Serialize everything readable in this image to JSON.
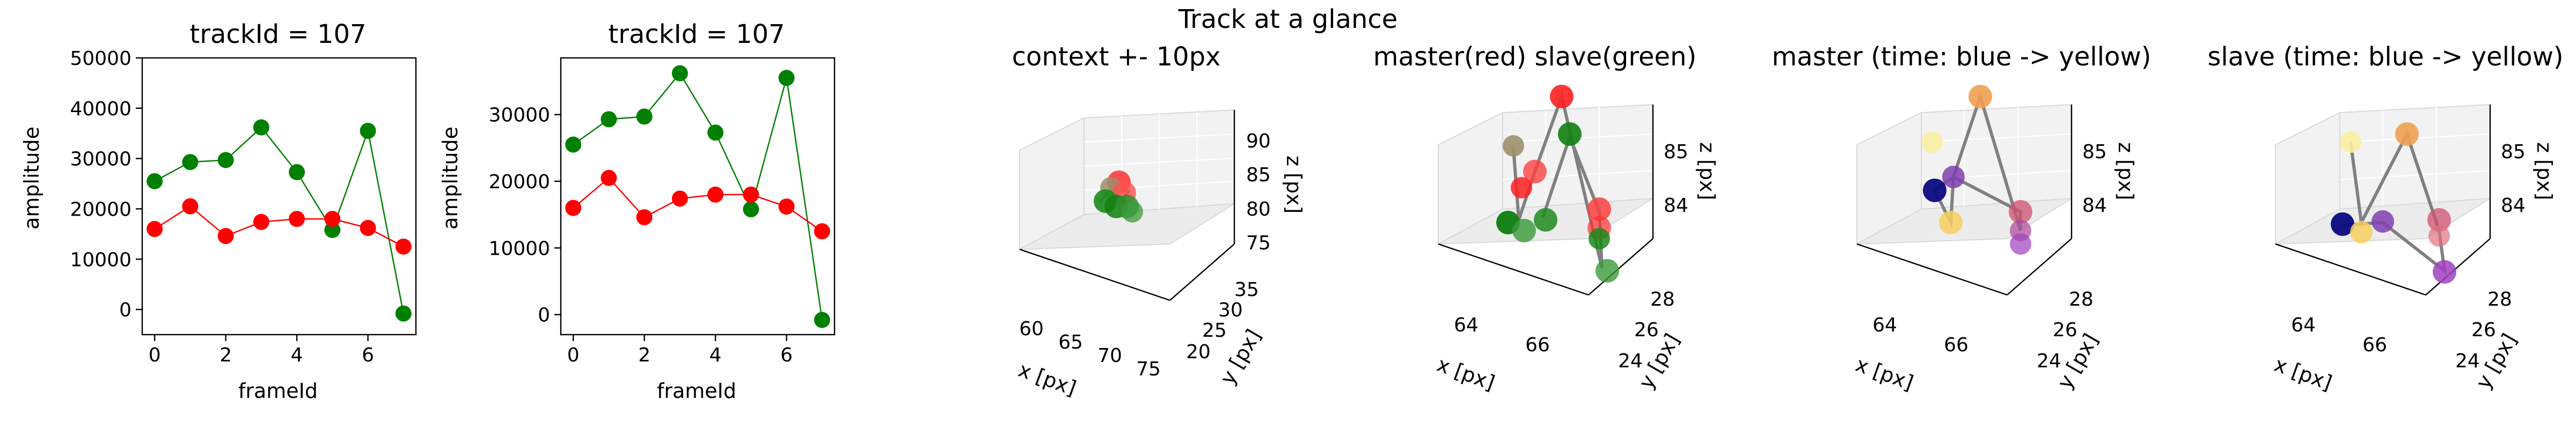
{
  "figure": {
    "suptitle": "Track at a glance"
  },
  "chart_data": [
    {
      "type": "line",
      "title": "trackId = 107",
      "xlabel": "frameId",
      "ylabel": "amplitude",
      "x": [
        0,
        1,
        2,
        3,
        4,
        5,
        6,
        7
      ],
      "xlim": [
        -0.35,
        7.35
      ],
      "ylim": [
        -5000,
        50000
      ],
      "xticks": [
        0,
        2,
        4,
        6
      ],
      "yticks": [
        0,
        10000,
        20000,
        30000,
        40000,
        50000
      ],
      "series": [
        {
          "color": "#008000",
          "values": [
            25500,
            29300,
            29700,
            36200,
            27300,
            15800,
            35500,
            -800
          ]
        },
        {
          "color": "#ff0000",
          "values": [
            16000,
            20500,
            14600,
            17400,
            18000,
            18000,
            16200,
            12500
          ]
        }
      ]
    },
    {
      "type": "line",
      "title": "trackId = 107",
      "xlabel": "frameId",
      "ylabel": "amplitude",
      "x": [
        0,
        1,
        2,
        3,
        4,
        5,
        6,
        7
      ],
      "xlim": [
        -0.35,
        7.35
      ],
      "ylim": [
        -3000,
        38500
      ],
      "xticks": [
        0,
        2,
        4,
        6
      ],
      "yticks": [
        0,
        10000,
        20000,
        30000
      ],
      "series": [
        {
          "color": "#008000",
          "values": [
            25500,
            29300,
            29700,
            36200,
            27300,
            15800,
            35500,
            -800
          ]
        },
        {
          "color": "#ff0000",
          "values": [
            16000,
            20500,
            14600,
            17400,
            18000,
            18000,
            16200,
            12500
          ]
        }
      ]
    },
    {
      "type": "scatter",
      "title": "context +- 10px",
      "xlabel": "x [px]",
      "ylabel": "y [px]",
      "zlabel": "z [px]",
      "xticks": [
        "60",
        "65",
        "70",
        "75"
      ],
      "yticks": [
        "20",
        "25",
        "30",
        "35"
      ],
      "zticks": [
        "75",
        "80",
        "85",
        "90"
      ]
    },
    {
      "type": "scatter",
      "title": "master(red) slave(green)",
      "xlabel": "x [px]",
      "ylabel": "y [px]",
      "zlabel": "z [px]",
      "xticks": [
        "64",
        "66"
      ],
      "yticks": [
        "24",
        "26",
        "28"
      ],
      "zticks": [
        "84",
        "85"
      ]
    },
    {
      "type": "scatter",
      "title": "master (time: blue -> yellow)",
      "xlabel": "x [px]",
      "ylabel": "y [px]",
      "zlabel": "z [px]",
      "xticks": [
        "64",
        "66"
      ],
      "yticks": [
        "24",
        "26",
        "28"
      ],
      "zticks": [
        "84",
        "85"
      ]
    },
    {
      "type": "scatter",
      "title": "slave (time: blue -> yellow)",
      "xlabel": "x [px]",
      "ylabel": "y [px]",
      "zlabel": "z [px]",
      "xticks": [
        "64",
        "66"
      ],
      "yticks": [
        "24",
        "26",
        "28"
      ],
      "zticks": [
        "84",
        "85"
      ]
    }
  ]
}
